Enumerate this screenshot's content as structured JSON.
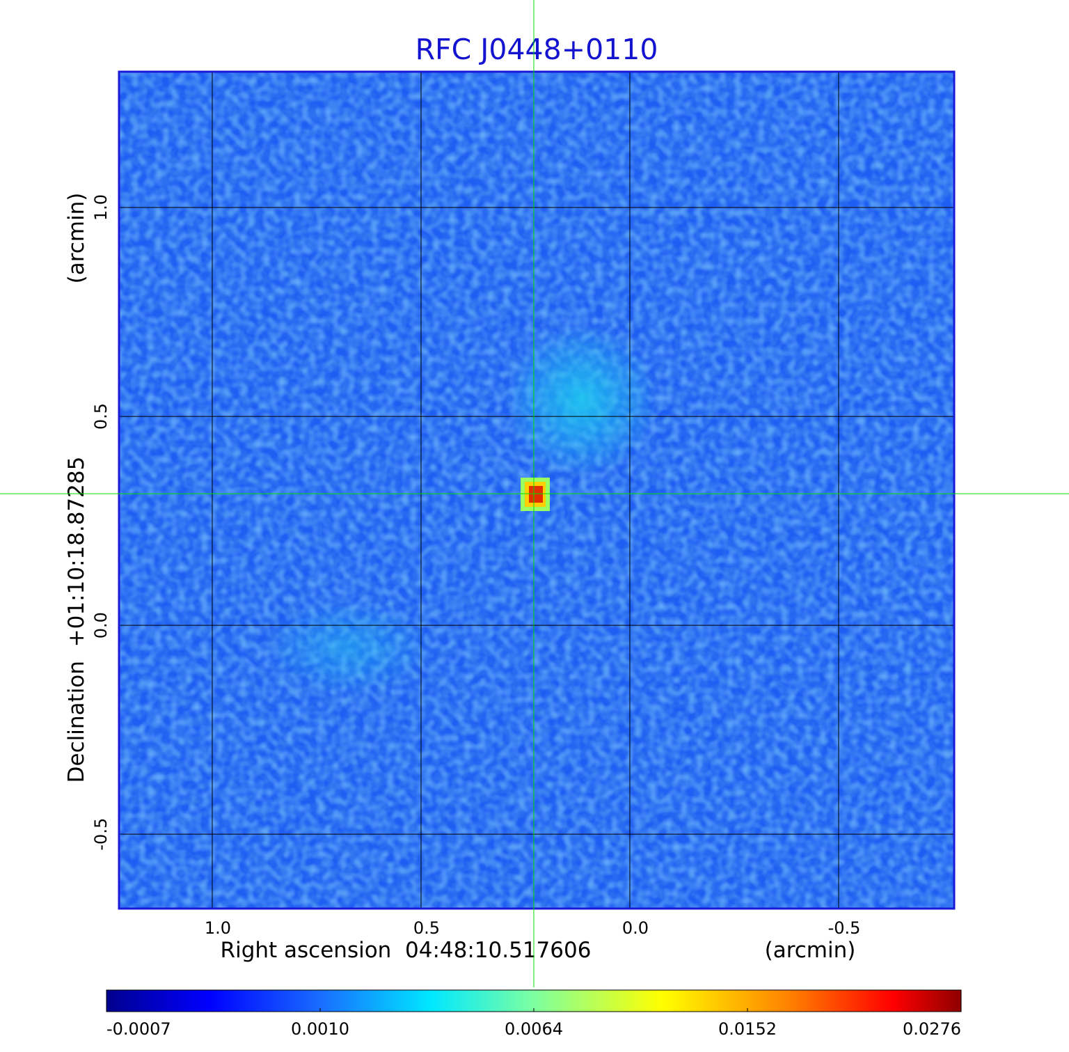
{
  "chart_data": {
    "type": "image",
    "title": "RFC J0448+0110",
    "xlabel": "Right ascension  04:48:10.517606",
    "xunit": "(arcmin)",
    "ylabel": "Declination  +01:10:18.87285",
    "yunit": "(arcmin)",
    "xlim": [
      1.2233,
      -0.7767
    ],
    "ylim": [
      -0.678,
      1.325
    ],
    "xticks": [
      {
        "value": 1,
        "label": "1.0"
      },
      0.5,
      {
        "value": 0,
        "label": "0.0"
      },
      -0.5
    ],
    "yticks": [
      -0.5,
      {
        "value": 0,
        "label": "0.0"
      },
      0.5,
      {
        "value": 1,
        "label": "1.0"
      }
    ],
    "grid": true,
    "crosshair": {
      "x": 0.23,
      "y": 0.315,
      "color": "#00e000"
    },
    "colorbar": {
      "colormap": "jet",
      "ticks": [
        -0.0007,
        {
          "value": 0.001,
          "label": "0.0010"
        },
        0.0064,
        0.0152,
        0.0276
      ]
    }
  }
}
